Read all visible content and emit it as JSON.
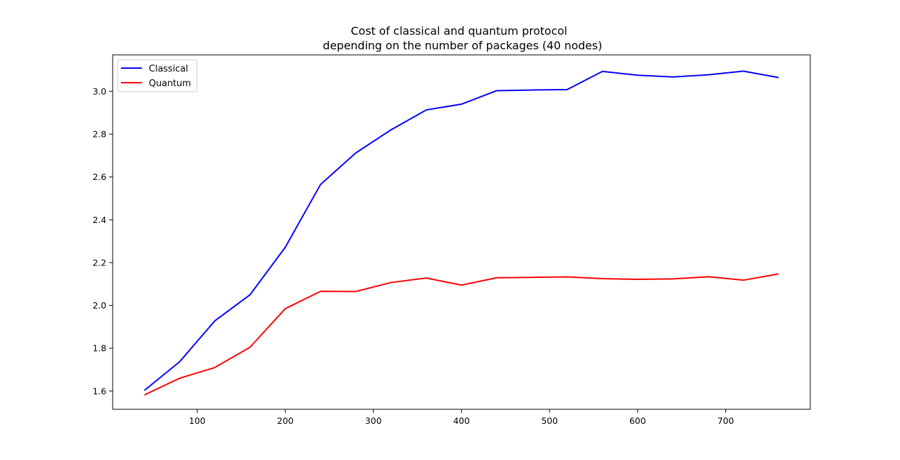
{
  "chart_data": {
    "type": "line",
    "title": "Cost of classical and quantum protocol\ndepending on the number of packages (40 nodes)",
    "title_lines": [
      "Cost of classical and quantum protocol",
      "depending on the number of packages (40 nodes)"
    ],
    "xlabel": "",
    "ylabel": "",
    "xlim": [
      4,
      796
    ],
    "ylim": [
      1.515,
      3.17
    ],
    "xticks": [
      100,
      200,
      300,
      400,
      500,
      600,
      700
    ],
    "yticks": [
      1.6,
      1.8,
      2.0,
      2.2,
      2.4,
      2.6,
      2.8,
      3.0
    ],
    "xtick_labels": [
      "100",
      "200",
      "300",
      "400",
      "500",
      "600",
      "700"
    ],
    "ytick_labels": [
      "1.6",
      "1.8",
      "2.0",
      "2.2",
      "2.4",
      "2.6",
      "2.8",
      "3.0"
    ],
    "x": [
      40,
      80,
      120,
      160,
      200,
      240,
      280,
      320,
      360,
      400,
      440,
      480,
      520,
      560,
      600,
      640,
      680,
      720,
      760
    ],
    "series": [
      {
        "name": "Classical",
        "color": "#0000ff",
        "values": [
          1.603,
          1.737,
          1.928,
          2.05,
          2.272,
          2.565,
          2.712,
          2.82,
          2.913,
          2.94,
          3.003,
          3.006,
          3.008,
          3.093,
          3.075,
          3.067,
          3.077,
          3.094,
          3.064
        ]
      },
      {
        "name": "Quantum",
        "color": "#ff0000",
        "values": [
          1.582,
          1.66,
          1.71,
          1.805,
          1.985,
          2.066,
          2.065,
          2.107,
          2.128,
          2.095,
          2.129,
          2.131,
          2.133,
          2.125,
          2.122,
          2.124,
          2.134,
          2.118,
          2.147
        ]
      }
    ],
    "grid": false,
    "legend_position": "upper-left"
  }
}
